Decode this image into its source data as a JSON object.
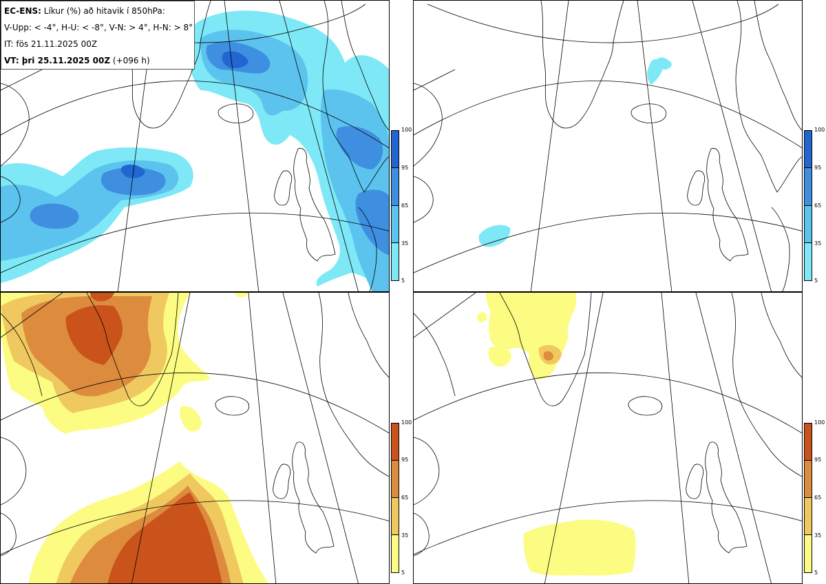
{
  "header": {
    "product": "EC-ENS:",
    "title": "Líkur (%) að hitavik í 850hPa:",
    "thresholds": "V-Upp: < -4°, H-U: < -8°, V-N: > 4°, H-N: > 8°",
    "init_time": "IT: fös 21.11.2025 00Z",
    "valid_label": "VT: þri 25.11.2025 00Z",
    "lead_time": "(+096 h)"
  },
  "colorbar": {
    "ticks": [
      "100",
      "95",
      "65",
      "35",
      "5"
    ],
    "cold_colors": [
      "#2166d1",
      "#3f8fe0",
      "#5bc3ee",
      "#7ee8f6"
    ],
    "warm_colors": [
      "#c9531a",
      "#dd8c3e",
      "#f0c860",
      "#fcfc82"
    ]
  },
  "colors": {
    "coast": "#000000",
    "graticule": "#000000"
  },
  "panels": [
    {
      "id": "top-left"
    },
    {
      "id": "top-right"
    },
    {
      "id": "bottom-left"
    },
    {
      "id": "bottom-right"
    }
  ]
}
